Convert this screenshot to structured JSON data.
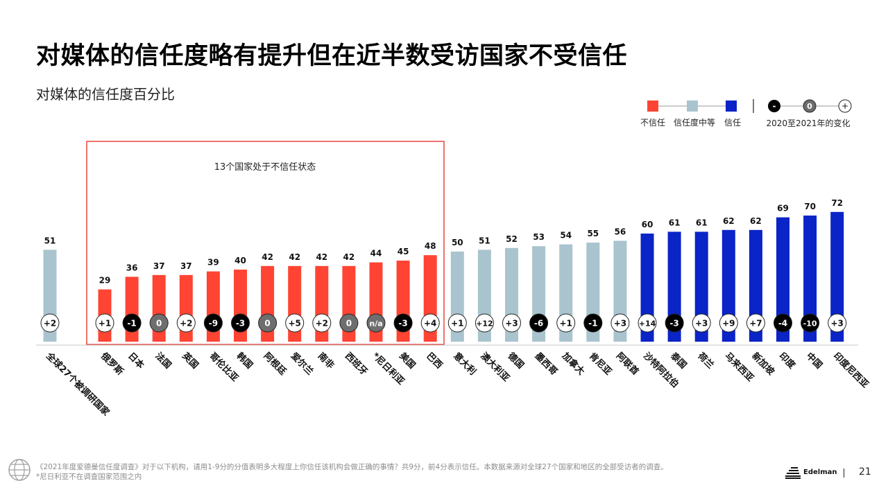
{
  "title": "对媒体的信任度略有提升但在近半数受访国家不受信任",
  "subtitle": "对媒体的信任度百分比",
  "legend": {
    "distrust": "不信任",
    "neutral": "信任度中等",
    "trust": "信任",
    "change_label": "2020至2021年的变化",
    "change_negative": "-",
    "change_zero": "0",
    "change_positive": "+"
  },
  "highlight_label": "13个国家处于不信任状态",
  "colors": {
    "distrust": "#FF4433",
    "neutral": "#A9C4CE",
    "trust": "#0A24C7",
    "change_negative": "#000000",
    "change_zero": "#6E6E6E",
    "change_positive": "#FFFFFF",
    "highlight_border": "#E8473A"
  },
  "chart_data": {
    "type": "bar",
    "title": "对媒体的信任度百分比",
    "ylim": [
      0,
      100
    ],
    "categories": [
      "全球27个被调研国家",
      "俄罗斯",
      "日本",
      "法国",
      "英国",
      "哥伦比亚",
      "韩国",
      "阿根廷",
      "爱尔兰",
      "南非",
      "西班牙",
      "*尼日利亚",
      "美国",
      "巴西",
      "意大利",
      "澳大利亚",
      "德国",
      "墨西哥",
      "加拿大",
      "肯尼亚",
      "阿联酋",
      "沙特阿拉伯",
      "泰国",
      "荷兰",
      "马来西亚",
      "新加坡",
      "印度",
      "中国",
      "印度尼西亚"
    ],
    "values": [
      51,
      29,
      36,
      37,
      37,
      39,
      40,
      42,
      42,
      42,
      42,
      44,
      45,
      48,
      50,
      51,
      52,
      53,
      54,
      55,
      56,
      60,
      61,
      61,
      62,
      62,
      69,
      70,
      72
    ],
    "trust_level": [
      "neutral",
      "distrust",
      "distrust",
      "distrust",
      "distrust",
      "distrust",
      "distrust",
      "distrust",
      "distrust",
      "distrust",
      "distrust",
      "distrust",
      "distrust",
      "distrust",
      "neutral",
      "neutral",
      "neutral",
      "neutral",
      "neutral",
      "neutral",
      "neutral",
      "trust",
      "trust",
      "trust",
      "trust",
      "trust",
      "trust",
      "trust",
      "trust"
    ],
    "changes": [
      "+2",
      "+1",
      "-1",
      "0",
      "+2",
      "-9",
      "-3",
      "0",
      "+5",
      "+2",
      "0",
      "n/a",
      "-3",
      "+4",
      "+1",
      "+12",
      "+3",
      "-6",
      "+1",
      "-1",
      "+3",
      "+14",
      "-3",
      "+3",
      "+9",
      "+7",
      "-4",
      "-10",
      "+3"
    ],
    "change_type": [
      "positive",
      "positive",
      "negative",
      "zero",
      "positive",
      "negative",
      "negative",
      "zero",
      "positive",
      "positive",
      "zero",
      "zero",
      "negative",
      "positive",
      "positive",
      "positive",
      "positive",
      "negative",
      "positive",
      "negative",
      "positive",
      "positive",
      "negative",
      "positive",
      "positive",
      "positive",
      "negative",
      "negative",
      "positive"
    ],
    "change_series_label": "2020至2021年的变化"
  },
  "footnote": {
    "line1": "《2021年度爱德曼信任度调查》对于以下机构，请用1-9分的分值表明多大程度上你信任该机构会做正确的事情？共9分，前4分表示信任。本数据来源对全球27个国家和地区的全部受访者的调查。",
    "line2": "*尼日利亚不在调查国家范围之内"
  },
  "brand": "Edelman",
  "page_number": "21"
}
